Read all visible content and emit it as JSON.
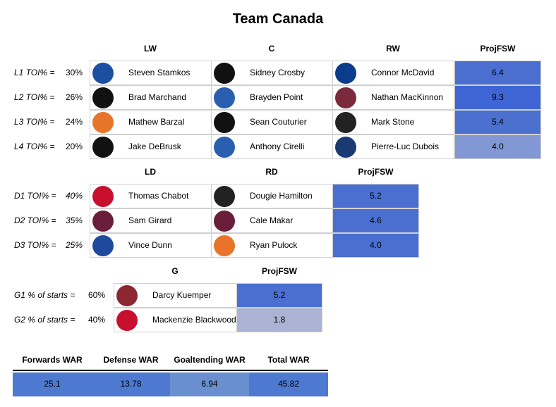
{
  "title": "Team Canada",
  "forwards": {
    "headers": [
      "LW",
      "C",
      "RW",
      "ProjFSW"
    ],
    "rows": [
      {
        "label": "L1 TOI% =",
        "share": "30%",
        "players": [
          "Steven Stamkos",
          "Sidney Crosby",
          "Connor McDavid"
        ],
        "proj": "6.4",
        "color": "#4a6fd0"
      },
      {
        "label": "L2 TOI% =",
        "share": "26%",
        "players": [
          "Brad Marchand",
          "Brayden Point",
          "Nathan MacKinnon"
        ],
        "proj": "9.3",
        "color": "#3f65d4"
      },
      {
        "label": "L3 TOI% =",
        "share": "24%",
        "players": [
          "Mathew Barzal",
          "Sean Couturier",
          "Mark Stone"
        ],
        "proj": "5.4",
        "color": "#4b70cf"
      },
      {
        "label": "L4 TOI% =",
        "share": "20%",
        "players": [
          "Jake DeBrusk",
          "Anthony Cirelli",
          "Pierre-Luc Dubois"
        ],
        "proj": "4.0",
        "color": "#8198d4"
      }
    ]
  },
  "defense": {
    "headers": [
      "LD",
      "RD",
      "ProjFSW"
    ],
    "rows": [
      {
        "label": "D1 TOI% =",
        "share": "40%",
        "players": [
          "Thomas Chabot",
          "Dougie Hamilton"
        ],
        "proj": "5.2",
        "color": "#4a6fd0"
      },
      {
        "label": "D2 TOI% =",
        "share": "35%",
        "players": [
          "Sam Girard",
          "Cale Makar"
        ],
        "proj": "4.6",
        "color": "#4a6fd0"
      },
      {
        "label": "D3 TOI% =",
        "share": "25%",
        "players": [
          "Vince Dunn",
          "Ryan Pulock"
        ],
        "proj": "4.0",
        "color": "#4a6fd0"
      }
    ]
  },
  "goalies": {
    "headers": [
      "G",
      "ProjFSW"
    ],
    "rows": [
      {
        "label": "G1 % of starts =",
        "share": "60%",
        "players": [
          "Darcy Kuemper"
        ],
        "proj": "5.2",
        "color": "#4a6fd0"
      },
      {
        "label": "G2 % of starts =",
        "share": "40%",
        "players": [
          "Mackenzie Blackwood"
        ],
        "proj": "1.8",
        "color": "#aab3d3"
      }
    ]
  },
  "war": {
    "headers": [
      "Forwards WAR",
      "Defense WAR",
      "Goaltending WAR",
      "Total WAR"
    ],
    "values": [
      "25.1",
      "13.78",
      "6.94",
      "45.82"
    ],
    "colors": [
      "#4d79d0",
      "#4d79d0",
      "#6a8fd0",
      "#4d79d0"
    ]
  }
}
